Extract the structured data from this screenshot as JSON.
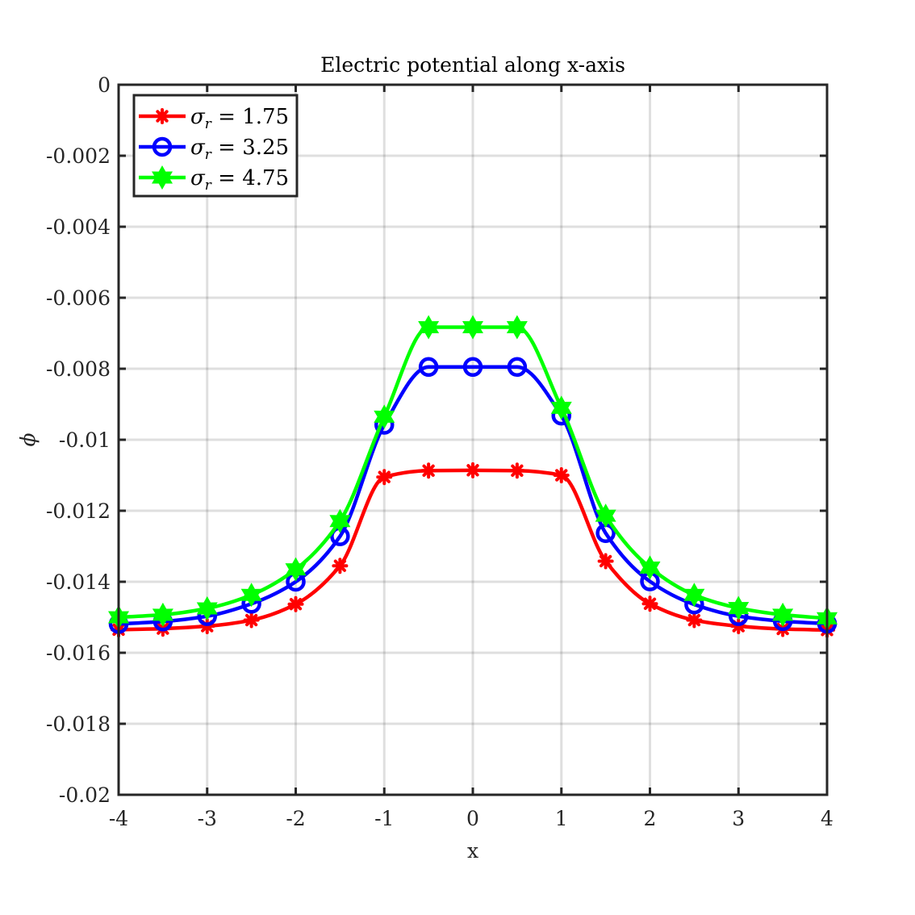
{
  "chart_data": {
    "type": "line",
    "title": "Electric potential along x-axis",
    "xlabel": "x",
    "ylabel": "ϕ",
    "xlim": [
      -4,
      4
    ],
    "ylim": [
      -0.02,
      0
    ],
    "x_ticks": [
      -4,
      -3,
      -2,
      -1,
      0,
      1,
      2,
      3,
      4
    ],
    "x_tick_labels": [
      "-4",
      "-3",
      "-2",
      "-1",
      "0",
      "1",
      "2",
      "3",
      "4"
    ],
    "y_ticks": [
      0,
      -0.002,
      -0.004,
      -0.006,
      -0.008,
      -0.01,
      -0.012,
      -0.014,
      -0.016,
      -0.018,
      -0.02
    ],
    "y_tick_labels": [
      "0",
      "-0.002",
      "-0.004",
      "-0.006",
      "-0.008",
      "-0.01",
      "-0.012",
      "-0.014",
      "-0.016",
      "-0.018",
      "-0.02"
    ],
    "grid": true,
    "legend_position": "top-left",
    "x": [
      -4,
      -3.5,
      -3,
      -2.5,
      -2,
      -1.5,
      -1,
      -0.5,
      0,
      0.5,
      1,
      1.5,
      2,
      2.5,
      3,
      3.5,
      4
    ],
    "series": [
      {
        "name": "σr = 1.75",
        "legend_symbol": "σ",
        "legend_subscript": "r",
        "legend_value": " = 1.75",
        "color": "#ff0000",
        "marker": "asterisk",
        "values": [
          -0.01535,
          -0.01532,
          -0.01525,
          -0.01508,
          -0.01463,
          -0.01355,
          -0.01105,
          -0.01087,
          -0.01086,
          -0.01087,
          -0.011,
          -0.01342,
          -0.01462,
          -0.01508,
          -0.01525,
          -0.01533,
          -0.01536
        ]
      },
      {
        "name": "σr = 3.25",
        "legend_symbol": "σ",
        "legend_subscript": "r",
        "legend_value": " = 3.25",
        "color": "#0000ff",
        "marker": "circle",
        "values": [
          -0.01519,
          -0.01512,
          -0.01497,
          -0.01462,
          -0.014,
          -0.01272,
          -0.00958,
          -0.00795,
          -0.00795,
          -0.00795,
          -0.00932,
          -0.01263,
          -0.01399,
          -0.01464,
          -0.01497,
          -0.01511,
          -0.01518
        ]
      },
      {
        "name": "σr = 4.75",
        "legend_symbol": "σ",
        "legend_subscript": "r",
        "legend_value": " = 4.75",
        "color": "#00ff00",
        "marker": "hexagram",
        "values": [
          -0.015,
          -0.01493,
          -0.01475,
          -0.01437,
          -0.01365,
          -0.01229,
          -0.00935,
          -0.00683,
          -0.00683,
          -0.00683,
          -0.0091,
          -0.01214,
          -0.0136,
          -0.01437,
          -0.01474,
          -0.01493,
          -0.01503
        ]
      }
    ]
  }
}
